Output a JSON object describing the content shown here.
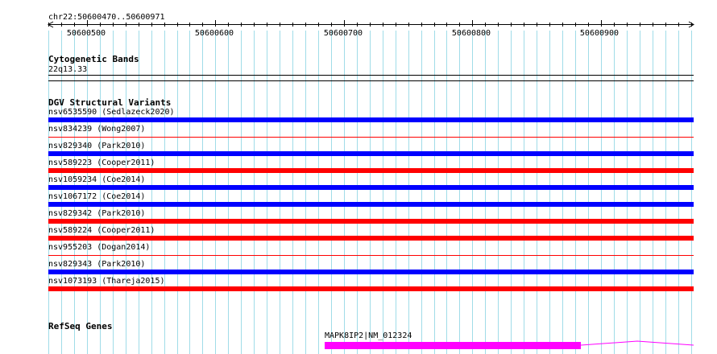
{
  "ruler": {
    "location": "chr22:50600470..50600971",
    "ticks": [
      "50600500",
      "50600600",
      "50600700",
      "50600800",
      "50600900"
    ]
  },
  "cytobands": {
    "title": "Cytogenetic Bands",
    "band": "22q13.33"
  },
  "dgv": {
    "title": "DGV Structural Variants",
    "variants": [
      {
        "label": "nsv6535590 (Sedlazeck2020)",
        "color": "#0000ff",
        "style": "thick"
      },
      {
        "label": "nsv834239 (Wong2007)",
        "color": "#ff0000",
        "style": "thin"
      },
      {
        "label": "nsv829340 (Park2010)",
        "color": "#0000ff",
        "style": "thick"
      },
      {
        "label": "nsv589223 (Cooper2011)",
        "color": "#ff0000",
        "style": "thick"
      },
      {
        "label": "nsv1059234 (Coe2014)",
        "color": "#0000ff",
        "style": "thick"
      },
      {
        "label": "nsv1067172 (Coe2014)",
        "color": "#0000ff",
        "style": "thick"
      },
      {
        "label": "nsv829342 (Park2010)",
        "color": "#ff0000",
        "style": "thick"
      },
      {
        "label": "nsv589224 (Cooper2011)",
        "color": "#ff0000",
        "style": "thick"
      },
      {
        "label": "nsv955203 (Dogan2014)",
        "color": "#ff0000",
        "style": "thin"
      },
      {
        "label": "nsv829343 (Park2010)",
        "color": "#0000ff",
        "style": "thick"
      },
      {
        "label": "nsv1073193 (Thareja2015)",
        "color": "#ff0000",
        "style": "thick"
      }
    ]
  },
  "refseq": {
    "title": "RefSeq Genes",
    "gene_label": "MAPK8IP2|NM_012324",
    "gene_color": "#ff00ff"
  },
  "colors": {
    "grid": "#a0dce8",
    "grid_major": "#6fbccb"
  }
}
